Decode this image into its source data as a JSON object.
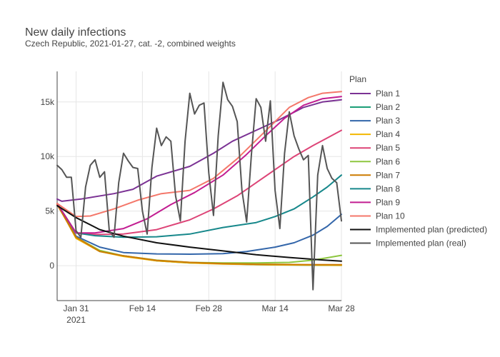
{
  "chart_data": {
    "type": "line",
    "title": "New daily infections",
    "subtitle": "Czech Republic, 2021-01-27, cat. -2, combined weights",
    "xlabel": "",
    "ylabel": "",
    "x_range": [
      "2021-01-27",
      "2021-03-28"
    ],
    "y_range": [
      -3200,
      17800
    ],
    "x_ticks": [
      {
        "date": "2021-01-31",
        "label": "Jan 31",
        "sublabel": "2021"
      },
      {
        "date": "2021-02-14",
        "label": "Feb 14"
      },
      {
        "date": "2021-02-28",
        "label": "Feb 28"
      },
      {
        "date": "2021-03-14",
        "label": "Mar 14"
      },
      {
        "date": "2021-03-28",
        "label": "Mar 28"
      }
    ],
    "y_ticks": [
      {
        "value": 0,
        "label": "0"
      },
      {
        "value": 5000,
        "label": "5k"
      },
      {
        "value": 10000,
        "label": "10k"
      },
      {
        "value": 15000,
        "label": "15k"
      }
    ],
    "grid": true,
    "legend_title": "Plan",
    "legend_position": "right",
    "series": [
      {
        "name": "Plan 1",
        "color": "#7b3294",
        "points": [
          [
            "2021-01-27",
            6100
          ],
          [
            "2021-01-28",
            5900
          ],
          [
            "2021-02-01",
            6100
          ],
          [
            "2021-02-08",
            6600
          ],
          [
            "2021-02-12",
            7000
          ],
          [
            "2021-02-17",
            8200
          ],
          [
            "2021-02-24",
            9100
          ],
          [
            "2021-03-01",
            10300
          ],
          [
            "2021-03-05",
            11400
          ],
          [
            "2021-03-10",
            12400
          ],
          [
            "2021-03-15",
            13400
          ],
          [
            "2021-03-20",
            14500
          ],
          [
            "2021-03-24",
            15000
          ],
          [
            "2021-03-28",
            15200
          ]
        ]
      },
      {
        "name": "Plan 2",
        "color": "#1b9e77",
        "points": [
          [
            "2021-01-27",
            5700
          ],
          [
            "2021-01-31",
            2600
          ],
          [
            "2021-02-05",
            1300
          ],
          [
            "2021-02-10",
            900
          ],
          [
            "2021-02-17",
            450
          ],
          [
            "2021-02-24",
            250
          ],
          [
            "2021-03-03",
            180
          ],
          [
            "2021-03-10",
            100
          ],
          [
            "2021-03-20",
            50
          ],
          [
            "2021-03-28",
            30
          ]
        ]
      },
      {
        "name": "Plan 3",
        "color": "#3366aa",
        "points": [
          [
            "2021-01-27",
            5700
          ],
          [
            "2021-01-31",
            2700
          ],
          [
            "2021-02-05",
            1700
          ],
          [
            "2021-02-10",
            1200
          ],
          [
            "2021-02-17",
            1080
          ],
          [
            "2021-02-24",
            1050
          ],
          [
            "2021-03-03",
            1100
          ],
          [
            "2021-03-08",
            1300
          ],
          [
            "2021-03-14",
            1700
          ],
          [
            "2021-03-18",
            2100
          ],
          [
            "2021-03-22",
            2800
          ],
          [
            "2021-03-25",
            3600
          ],
          [
            "2021-03-28",
            4700
          ]
        ]
      },
      {
        "name": "Plan 4",
        "color": "#f2b701",
        "points": [
          [
            "2021-01-27",
            5700
          ],
          [
            "2021-01-31",
            2500
          ],
          [
            "2021-02-05",
            1300
          ],
          [
            "2021-02-10",
            850
          ],
          [
            "2021-02-17",
            450
          ],
          [
            "2021-02-24",
            250
          ],
          [
            "2021-03-03",
            150
          ],
          [
            "2021-03-14",
            80
          ],
          [
            "2021-03-28",
            40
          ]
        ]
      },
      {
        "name": "Plan 5",
        "color": "#dd4477",
        "points": [
          [
            "2021-01-27",
            5700
          ],
          [
            "2021-01-31",
            3000
          ],
          [
            "2021-02-04",
            2850
          ],
          [
            "2021-02-10",
            2900
          ],
          [
            "2021-02-17",
            3300
          ],
          [
            "2021-02-24",
            4200
          ],
          [
            "2021-03-01",
            5200
          ],
          [
            "2021-03-06",
            6400
          ],
          [
            "2021-03-10",
            7600
          ],
          [
            "2021-03-14",
            8800
          ],
          [
            "2021-03-18",
            10000
          ],
          [
            "2021-03-22",
            11000
          ],
          [
            "2021-03-25",
            11700
          ],
          [
            "2021-03-28",
            12400
          ]
        ]
      },
      {
        "name": "Plan 6",
        "color": "#8dc63f",
        "points": [
          [
            "2021-01-27",
            5700
          ],
          [
            "2021-01-31",
            2600
          ],
          [
            "2021-02-05",
            1400
          ],
          [
            "2021-02-10",
            900
          ],
          [
            "2021-02-17",
            500
          ],
          [
            "2021-02-24",
            300
          ],
          [
            "2021-03-03",
            250
          ],
          [
            "2021-03-10",
            250
          ],
          [
            "2021-03-17",
            300
          ],
          [
            "2021-03-22",
            500
          ],
          [
            "2021-03-28",
            950
          ]
        ]
      },
      {
        "name": "Plan 7",
        "color": "#cc7a00",
        "points": [
          [
            "2021-01-27",
            5600
          ],
          [
            "2021-01-31",
            2600
          ],
          [
            "2021-02-05",
            1300
          ],
          [
            "2021-02-10",
            900
          ],
          [
            "2021-02-17",
            480
          ],
          [
            "2021-02-24",
            300
          ],
          [
            "2021-03-03",
            180
          ],
          [
            "2021-03-10",
            130
          ],
          [
            "2021-03-20",
            100
          ],
          [
            "2021-03-28",
            90
          ]
        ]
      },
      {
        "name": "Plan 8",
        "color": "#17888b",
        "points": [
          [
            "2021-01-27",
            5700
          ],
          [
            "2021-01-31",
            3000
          ],
          [
            "2021-02-04",
            2750
          ],
          [
            "2021-02-10",
            2600
          ],
          [
            "2021-02-17",
            2650
          ],
          [
            "2021-02-24",
            2900
          ],
          [
            "2021-03-03",
            3500
          ],
          [
            "2021-03-10",
            3950
          ],
          [
            "2021-03-14",
            4500
          ],
          [
            "2021-03-18",
            5200
          ],
          [
            "2021-03-22",
            6300
          ],
          [
            "2021-03-25",
            7200
          ],
          [
            "2021-03-28",
            8300
          ]
        ]
      },
      {
        "name": "Plan 9",
        "color": "#c21d91",
        "points": [
          [
            "2021-01-27",
            5700
          ],
          [
            "2021-01-31",
            3000
          ],
          [
            "2021-02-04",
            3000
          ],
          [
            "2021-02-10",
            3400
          ],
          [
            "2021-02-15",
            4300
          ],
          [
            "2021-02-20",
            5600
          ],
          [
            "2021-02-25",
            6700
          ],
          [
            "2021-03-03",
            8300
          ],
          [
            "2021-03-08",
            10200
          ],
          [
            "2021-03-12",
            11900
          ],
          [
            "2021-03-16",
            13500
          ],
          [
            "2021-03-20",
            14700
          ],
          [
            "2021-03-24",
            15300
          ],
          [
            "2021-03-28",
            15500
          ]
        ]
      },
      {
        "name": "Plan 10",
        "color": "#f4776a",
        "points": [
          [
            "2021-01-27",
            5700
          ],
          [
            "2021-01-31",
            4500
          ],
          [
            "2021-02-03",
            4550
          ],
          [
            "2021-02-08",
            5200
          ],
          [
            "2021-02-13",
            6000
          ],
          [
            "2021-02-18",
            6600
          ],
          [
            "2021-02-24",
            6900
          ],
          [
            "2021-03-01",
            8000
          ],
          [
            "2021-03-06",
            9800
          ],
          [
            "2021-03-10",
            11500
          ],
          [
            "2021-03-14",
            13200
          ],
          [
            "2021-03-17",
            14500
          ],
          [
            "2021-03-21",
            15400
          ],
          [
            "2021-03-24",
            15800
          ],
          [
            "2021-03-28",
            15950
          ]
        ]
      },
      {
        "name": "Implemented plan (predicted)",
        "color": "#111111",
        "points": [
          [
            "2021-01-27",
            5500
          ],
          [
            "2021-01-31",
            4400
          ],
          [
            "2021-02-05",
            3300
          ],
          [
            "2021-02-10",
            2700
          ],
          [
            "2021-02-17",
            2100
          ],
          [
            "2021-02-24",
            1700
          ],
          [
            "2021-03-03",
            1350
          ],
          [
            "2021-03-10",
            1000
          ],
          [
            "2021-03-17",
            750
          ],
          [
            "2021-03-24",
            520
          ],
          [
            "2021-03-28",
            420
          ]
        ]
      },
      {
        "name": "Implemented plan (real)",
        "color": "#555555",
        "points": [
          [
            "2021-01-27",
            9200
          ],
          [
            "2021-01-28",
            8800
          ],
          [
            "2021-01-29",
            8100
          ],
          [
            "2021-01-30",
            8100
          ],
          [
            "2021-01-31",
            3200
          ],
          [
            "2021-02-01",
            2600
          ],
          [
            "2021-02-02",
            7200
          ],
          [
            "2021-02-03",
            9200
          ],
          [
            "2021-02-04",
            9700
          ],
          [
            "2021-02-05",
            8100
          ],
          [
            "2021-02-06",
            8600
          ],
          [
            "2021-02-07",
            3200
          ],
          [
            "2021-02-08",
            2600
          ],
          [
            "2021-02-09",
            7600
          ],
          [
            "2021-02-10",
            10300
          ],
          [
            "2021-02-11",
            9600
          ],
          [
            "2021-02-12",
            9000
          ],
          [
            "2021-02-13",
            8900
          ],
          [
            "2021-02-14",
            5000
          ],
          [
            "2021-02-15",
            2900
          ],
          [
            "2021-02-16",
            9000
          ],
          [
            "2021-02-17",
            12600
          ],
          [
            "2021-02-18",
            11000
          ],
          [
            "2021-02-19",
            11800
          ],
          [
            "2021-02-20",
            11400
          ],
          [
            "2021-02-21",
            6400
          ],
          [
            "2021-02-22",
            4100
          ],
          [
            "2021-02-23",
            11400
          ],
          [
            "2021-02-24",
            15800
          ],
          [
            "2021-02-25",
            13900
          ],
          [
            "2021-02-26",
            14700
          ],
          [
            "2021-02-27",
            14900
          ],
          [
            "2021-02-28",
            8500
          ],
          [
            "2021-03-01",
            4600
          ],
          [
            "2021-03-02",
            11900
          ],
          [
            "2021-03-03",
            16800
          ],
          [
            "2021-03-04",
            15200
          ],
          [
            "2021-03-05",
            14600
          ],
          [
            "2021-03-06",
            13200
          ],
          [
            "2021-03-07",
            6900
          ],
          [
            "2021-03-08",
            4000
          ],
          [
            "2021-03-09",
            10200
          ],
          [
            "2021-03-10",
            15300
          ],
          [
            "2021-03-11",
            14500
          ],
          [
            "2021-03-12",
            11400
          ],
          [
            "2021-03-13",
            15100
          ],
          [
            "2021-03-14",
            6900
          ],
          [
            "2021-03-15",
            3400
          ],
          [
            "2021-03-16",
            10300
          ],
          [
            "2021-03-17",
            14100
          ],
          [
            "2021-03-18",
            11900
          ],
          [
            "2021-03-19",
            10700
          ],
          [
            "2021-03-20",
            9700
          ],
          [
            "2021-03-21",
            10100
          ],
          [
            "2021-03-22",
            -2200
          ],
          [
            "2021-03-23",
            8300
          ],
          [
            "2021-03-24",
            11000
          ],
          [
            "2021-03-25",
            8900
          ],
          [
            "2021-03-26",
            8000
          ],
          [
            "2021-03-27",
            7600
          ],
          [
            "2021-03-28",
            4100
          ]
        ]
      }
    ]
  }
}
